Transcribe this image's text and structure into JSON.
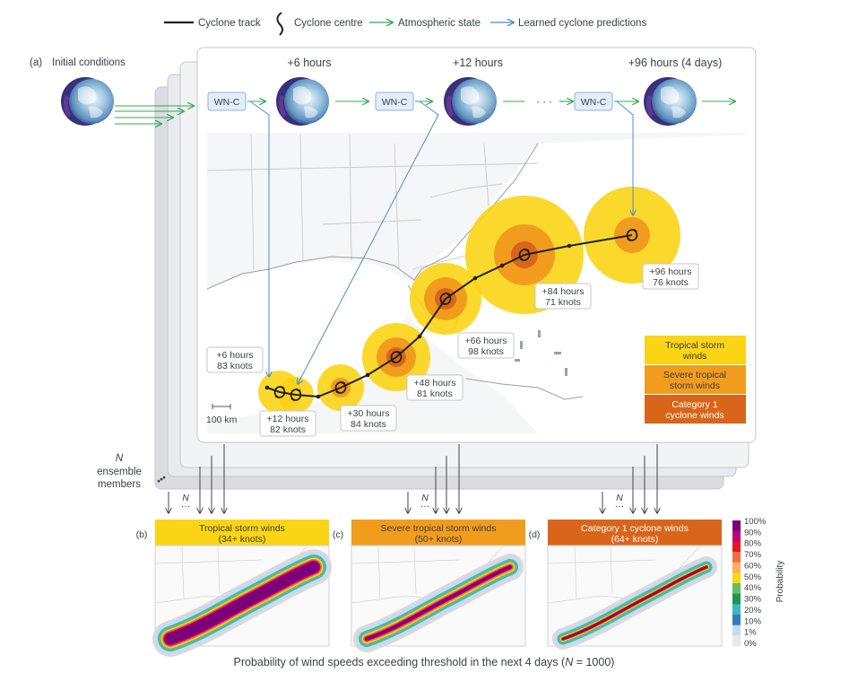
{
  "legend": {
    "items": [
      {
        "label": "Cyclone track",
        "color": "#202124"
      },
      {
        "label": "Cyclone centre",
        "color": "#202124"
      },
      {
        "label": "Atmospheric state",
        "color": "#34a853"
      },
      {
        "label": "Learned cyclone predictions",
        "color": "#4a90c8"
      }
    ]
  },
  "panel_a": {
    "tag": "(a)",
    "initial_conditions": "Initial conditions",
    "model_label": "WN-C",
    "ellipsis": "· · ·",
    "steps": [
      "+6 hours",
      "+12 hours",
      "+96 hours (4 days)"
    ],
    "ensemble": {
      "symbol": "N",
      "line1": "ensemble",
      "line2": "members",
      "dots": "•••",
      "small": "N",
      "small_dots": "···"
    },
    "scale_label": "100 km",
    "annotations": [
      {
        "time": "+6 hours",
        "speed": "83 knots"
      },
      {
        "time": "+12 hours",
        "speed": "82 knots"
      },
      {
        "time": "+30 hours",
        "speed": "84 knots"
      },
      {
        "time": "+48 hours",
        "speed": "81 knots"
      },
      {
        "time": "+66 hours",
        "speed": "98 knots"
      },
      {
        "time": "+84 hours",
        "speed": "71 knots"
      },
      {
        "time": "+96 hours",
        "speed": "76 knots"
      }
    ],
    "wind_key": [
      {
        "line1": "Tropical storm",
        "line2": "winds",
        "color": "#fbd415"
      },
      {
        "line1": "Severe tropical",
        "line2": "storm winds",
        "color": "#f29c1e"
      },
      {
        "line1": "Category 1",
        "line2": "cyclone winds",
        "color": "#d9651a"
      }
    ]
  },
  "maps": [
    {
      "tag": "(b)",
      "title": "Tropical storm winds",
      "subtitle": "(34+ knots)",
      "color": "#fbd415",
      "text_color": "#3c4043"
    },
    {
      "tag": "(c)",
      "title": "Severe tropical storm winds",
      "subtitle": "(50+ knots)",
      "color": "#f29c1e",
      "text_color": "#3c4043"
    },
    {
      "tag": "(d)",
      "title": "Category 1 cyclone winds",
      "subtitle": "(64+ knots)",
      "color": "#d9651a",
      "text_color": "#ffffff"
    }
  ],
  "colorbar": {
    "title": "Probability",
    "ticks": [
      "100%",
      "90%",
      "80%",
      "70%",
      "60%",
      "50%",
      "40%",
      "30%",
      "20%",
      "10%",
      "1%",
      "0%"
    ],
    "colors": [
      "#7a0177",
      "#c0007a",
      "#e31a1c",
      "#f46d43",
      "#fdae61",
      "#f6d617",
      "#66bd63",
      "#1a9850",
      "#41b6c4",
      "#2c7fb8",
      "#c6dbef",
      "#e8e8e8"
    ]
  },
  "caption": {
    "prefix": "Probability of wind speeds exceeding threshold in the next 4 days (",
    "var": "N",
    "suffix": " = 1000)"
  }
}
